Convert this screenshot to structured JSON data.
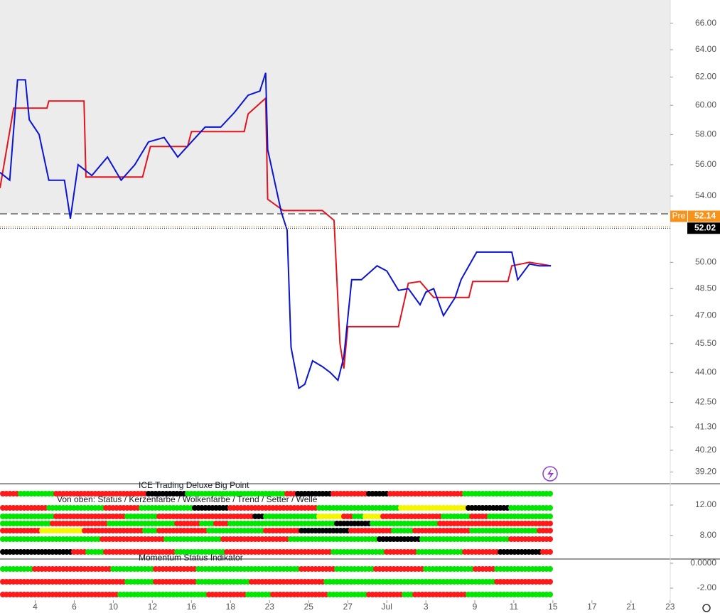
{
  "chart_data": {
    "type": "line",
    "log_scale": true,
    "xlim": [
      0,
      36.2
    ],
    "xticks": [
      {
        "value": 1.8,
        "label": "4"
      },
      {
        "value": 3.8,
        "label": "6"
      },
      {
        "value": 5.8,
        "label": "10"
      },
      {
        "value": 7.8,
        "label": "12"
      },
      {
        "value": 9.8,
        "label": "16"
      },
      {
        "value": 11.8,
        "label": "18"
      },
      {
        "value": 13.8,
        "label": "23"
      },
      {
        "value": 15.8,
        "label": "25"
      },
      {
        "value": 17.8,
        "label": "27"
      },
      {
        "value": 19.8,
        "label": "Jul"
      },
      {
        "value": 21.8,
        "label": "3"
      },
      {
        "value": 24.3,
        "label": "9"
      },
      {
        "value": 26.3,
        "label": "11"
      },
      {
        "value": 28.3,
        "label": "15"
      },
      {
        "value": 30.3,
        "label": "17"
      },
      {
        "value": 32.3,
        "label": "21"
      },
      {
        "value": 34.3,
        "label": "23"
      }
    ],
    "ylim": [
      38.7,
      67.8
    ],
    "yticks": [
      {
        "value": 66,
        "label": "66.00"
      },
      {
        "value": 64,
        "label": "64.00"
      },
      {
        "value": 62,
        "label": "62.00"
      },
      {
        "value": 60,
        "label": "60.00"
      },
      {
        "value": 58,
        "label": "58.00"
      },
      {
        "value": 56,
        "label": "56.00"
      },
      {
        "value": 54,
        "label": "54.00"
      },
      {
        "value": 50,
        "label": "50.00"
      },
      {
        "value": 48.5,
        "label": "48.50"
      },
      {
        "value": 47,
        "label": "47.00"
      },
      {
        "value": 45.5,
        "label": "45.50"
      },
      {
        "value": 44,
        "label": "44.00"
      },
      {
        "value": 42.5,
        "label": "42.50"
      },
      {
        "value": 41.3,
        "label": "41.30"
      },
      {
        "value": 40.2,
        "label": "40.20"
      },
      {
        "value": 39.2,
        "label": "39.20"
      }
    ],
    "series": [
      {
        "color": "#e0141e",
        "x": [
          0,
          0.7,
          2.4,
          2.5,
          4.3,
          4.4,
          5.8,
          7.3,
          7.7,
          9.6,
          9.8,
          11.8,
          12.5,
          12.7,
          13.6,
          13.7,
          14.5,
          16.5,
          17.1,
          17.4,
          17.6,
          17.8,
          20.4,
          20.9,
          21.5,
          22.2,
          24,
          24.2,
          26,
          26.2,
          27.1,
          28.2
        ],
        "values": [
          54.5,
          59.8,
          59.8,
          60.3,
          60.3,
          55.2,
          55.2,
          55.2,
          57.2,
          57.2,
          58.2,
          58.2,
          58.2,
          59.4,
          60.5,
          53.8,
          53.1,
          53.1,
          52.5,
          45.5,
          44.2,
          46.4,
          46.4,
          48.8,
          48.9,
          48.0,
          48.0,
          48.9,
          48.9,
          49.8,
          50.0,
          49.8
        ]
      },
      {
        "color": "#0a14d2",
        "x": [
          0,
          0.5,
          0.9,
          1.3,
          1.5,
          2,
          2.5,
          3.3,
          3.6,
          4,
          4.7,
          5.5,
          6.2,
          6.9,
          7.6,
          8.4,
          9.1,
          9.8,
          10.5,
          11.3,
          12,
          12.7,
          13.3,
          13.6,
          13.7,
          14.4,
          14.7,
          14.9,
          15.3,
          15.6,
          16,
          16.5,
          16.9,
          17.3,
          17.6,
          18,
          18.5,
          19.3,
          19.8,
          20.4,
          20.9,
          21.5,
          21.8,
          22.2,
          22.7,
          23.3,
          23.6,
          24,
          24.4,
          25.5,
          26.2,
          26.5,
          27.1,
          27.6,
          28.2
        ],
        "values": [
          55.5,
          55,
          61.8,
          61.8,
          59,
          58,
          55,
          55,
          52.6,
          56,
          55.3,
          56.5,
          55,
          56,
          57.5,
          57.8,
          56.5,
          57.5,
          58.5,
          58.5,
          59.5,
          60.7,
          61,
          62.3,
          57,
          53,
          51.9,
          45.3,
          43.2,
          43.4,
          44.6,
          44.3,
          44,
          43.6,
          44.8,
          49,
          49,
          49.8,
          49.5,
          48.4,
          48.5,
          47.6,
          48.3,
          48.5,
          47,
          48,
          49,
          49.8,
          50.6,
          50.6,
          50.6,
          49,
          49.9,
          49.8,
          49.8
        ]
      }
    ],
    "price_labels": [
      {
        "label": "Pre",
        "value": 52.14,
        "color": "#f7931a"
      },
      {
        "value": 52.02,
        "color": "#000000"
      }
    ]
  },
  "indicators": [
    {
      "title": "ICE Trading Deluxe Big Point",
      "subtitle": "Von oben: Status / Kerzenfarbe / Wolkenfarbe / Trend / Setter / Welle",
      "ylim": [
        4.9,
        14.8
      ],
      "yticks": [
        {
          "value": 12,
          "label": "12.00"
        },
        {
          "value": 8,
          "label": "8.00"
        }
      ]
    },
    {
      "title": "Momentum Status Indikator",
      "ylim": [
        -2.97,
        0.34
      ],
      "yticks": [
        {
          "value": 0,
          "label": "0.0000"
        },
        {
          "value": -2,
          "label": "-2.00"
        }
      ]
    }
  ]
}
